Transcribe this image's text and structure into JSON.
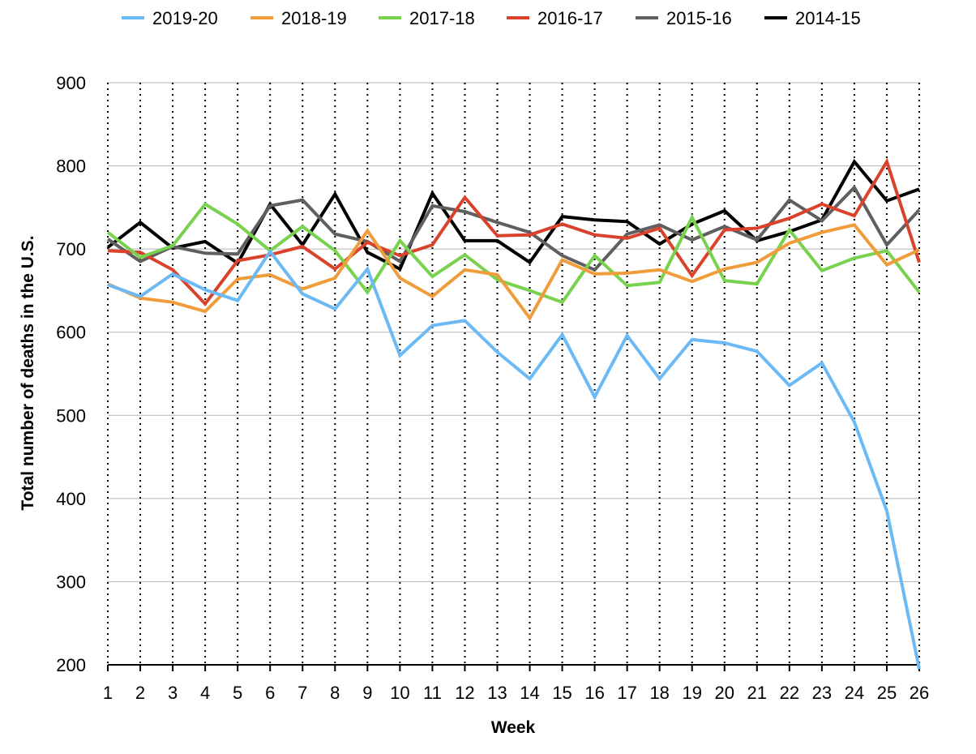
{
  "chart_data": {
    "type": "line",
    "title": "",
    "xlabel": "Week",
    "ylabel": "Total number of deaths in the U.S.",
    "x": [
      1,
      2,
      3,
      4,
      5,
      6,
      7,
      8,
      9,
      10,
      11,
      12,
      13,
      14,
      15,
      16,
      17,
      18,
      19,
      20,
      21,
      22,
      23,
      24,
      25,
      26
    ],
    "ylim": [
      200,
      900
    ],
    "yticks": [
      200,
      300,
      400,
      500,
      600,
      700,
      800,
      900
    ],
    "xtick_labels": [
      "1",
      "2",
      "3",
      "4",
      "5",
      "6",
      "7",
      "8",
      "9",
      "10",
      "11",
      "12",
      "13",
      "14",
      "15",
      "16",
      "17",
      "18",
      "19",
      "20",
      "21",
      "22",
      "23",
      "24",
      "25",
      "26"
    ],
    "ytick_labels": [
      "200",
      "300",
      "400",
      "500",
      "600",
      "700",
      "800",
      "900"
    ],
    "grid": {
      "horizontal": "solid",
      "vertical": "dotted"
    },
    "legend_position": "top",
    "series": [
      {
        "name": "2019-20",
        "color": "#6cbaf5",
        "values": [
          657,
          643,
          670,
          651,
          638,
          697,
          646,
          628,
          676,
          572,
          608,
          614,
          576,
          544,
          597,
          522,
          596,
          544,
          591,
          587,
          577,
          536,
          563,
          492,
          385,
          195
        ]
      },
      {
        "name": "2018-19",
        "color": "#f19c3b",
        "values": [
          658,
          641,
          636,
          625,
          664,
          669,
          652,
          665,
          722,
          665,
          643,
          675,
          669,
          617,
          687,
          670,
          671,
          675,
          661,
          676,
          684,
          707,
          720,
          729,
          681,
          699
        ]
      },
      {
        "name": "2017-18",
        "color": "#78d24e",
        "values": [
          720,
          690,
          704,
          754,
          730,
          698,
          727,
          698,
          648,
          710,
          667,
          693,
          663,
          650,
          636,
          692,
          656,
          660,
          738,
          662,
          658,
          723,
          674,
          689,
          698,
          648
        ]
      },
      {
        "name": "2016-17",
        "color": "#d9432c",
        "values": [
          698,
          696,
          675,
          634,
          686,
          693,
          703,
          676,
          708,
          692,
          705,
          762,
          716,
          717,
          730,
          717,
          713,
          725,
          668,
          723,
          725,
          737,
          754,
          740,
          805,
          684
        ]
      },
      {
        "name": "2015-16",
        "color": "#5f5f5f",
        "values": [
          712,
          685,
          703,
          695,
          694,
          752,
          759,
          718,
          709,
          685,
          752,
          745,
          732,
          720,
          692,
          675,
          718,
          729,
          711,
          727,
          711,
          759,
          734,
          774,
          705,
          747
        ]
      },
      {
        "name": "2014-15",
        "color": "#000000",
        "values": [
          702,
          732,
          701,
          709,
          683,
          754,
          705,
          766,
          696,
          676,
          767,
          710,
          710,
          684,
          739,
          735,
          733,
          706,
          730,
          746,
          710,
          721,
          735,
          805,
          758,
          772
        ]
      }
    ]
  }
}
